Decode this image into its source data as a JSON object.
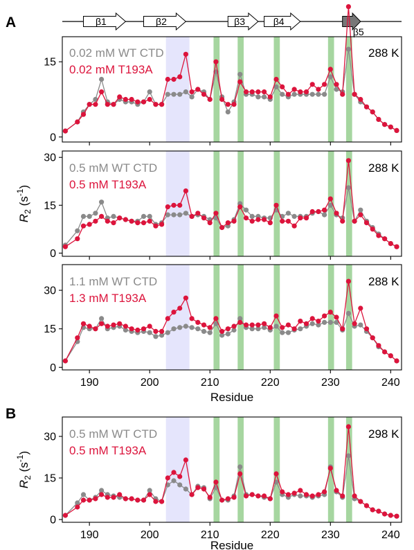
{
  "panel_labels": [
    "A",
    "B"
  ],
  "secondary_structure": {
    "strands": [
      {
        "label": "β1",
        "start": 189,
        "end": 196,
        "color": "#ffffff"
      },
      {
        "label": "β2",
        "start": 199,
        "end": 206,
        "color": "#ffffff"
      },
      {
        "label": "β3",
        "start": 213,
        "end": 218,
        "color": "#ffffff"
      },
      {
        "label": "β4",
        "start": 219,
        "end": 225,
        "color": "#ffffff"
      },
      {
        "label": "β5",
        "start": 232,
        "end": 235,
        "color": "#777777"
      }
    ]
  },
  "colors": {
    "wt": "#8a8a8a",
    "t193a": "#dc143c",
    "shade_blue": "#dcdcfb",
    "shade_green": "#a6d6a0"
  },
  "chart_data": [
    {
      "type": "line",
      "panel": "A",
      "temperature": "288 K",
      "ylabel": "",
      "xlabel": "",
      "xlim": [
        185.5,
        241.8
      ],
      "ylim": [
        -1,
        20
      ],
      "yticks": [
        0,
        15
      ],
      "xticks": [
        190,
        200,
        210,
        220,
        230,
        240
      ],
      "show_xtick_labels": false,
      "highlight_blue": [
        202.7,
        206.6
      ],
      "highlight_green": [
        210.6,
        214.6,
        220.6,
        229.6,
        232.6
      ],
      "series": [
        {
          "name": "0.02 mM WT CTD",
          "color": "#8a8a8a",
          "x": [
            186,
            188,
            189,
            190,
            191,
            192,
            193,
            194,
            195,
            196,
            197,
            198,
            199,
            200,
            201,
            202,
            203,
            204,
            205,
            206,
            207,
            208,
            209,
            210,
            211,
            212,
            213,
            214,
            215,
            216,
            217,
            218,
            219,
            220,
            221,
            222,
            223,
            224,
            225,
            226,
            227,
            228,
            229,
            230,
            231,
            232,
            233,
            234,
            235,
            236,
            237,
            238,
            239,
            240,
            241
          ],
          "y": [
            1.2,
            3.0,
            5.0,
            6.5,
            7.5,
            11.5,
            7.0,
            6.5,
            7.5,
            7.0,
            7.0,
            6.5,
            7.0,
            9.0,
            6.5,
            6.5,
            8.5,
            8.5,
            8.5,
            9.0,
            8.0,
            9.5,
            9.0,
            7.5,
            13.0,
            8.0,
            5.0,
            7.0,
            12.5,
            8.5,
            8.5,
            8.0,
            8.0,
            7.5,
            10.0,
            8.5,
            8.0,
            8.5,
            8.5,
            8.5,
            8.5,
            8.5,
            8.5,
            12.0,
            9.5,
            9.0,
            17.5,
            8.5,
            7.0,
            6.0,
            5.0,
            3.5,
            2.5,
            2.0,
            1.3
          ]
        },
        {
          "name": "0.02 mM T193A",
          "color": "#dc143c",
          "x": [
            186,
            188,
            189,
            190,
            191,
            192,
            193,
            194,
            195,
            196,
            197,
            198,
            199,
            200,
            201,
            202,
            203,
            204,
            205,
            206,
            207,
            208,
            209,
            210,
            211,
            212,
            213,
            214,
            215,
            216,
            217,
            218,
            219,
            220,
            221,
            222,
            223,
            224,
            225,
            226,
            227,
            228,
            229,
            230,
            231,
            232,
            233,
            234,
            235,
            236,
            237,
            238,
            239,
            240,
            241
          ],
          "y": [
            1.2,
            3.0,
            4.5,
            6.5,
            6.5,
            9.0,
            6.5,
            6.5,
            8.0,
            7.5,
            7.5,
            7.0,
            7.0,
            7.5,
            6.5,
            6.5,
            11.5,
            11.5,
            12.0,
            16.5,
            9.0,
            9.5,
            8.5,
            7.5,
            15.0,
            7.5,
            6.5,
            6.5,
            11.0,
            9.0,
            9.0,
            9.0,
            9.0,
            8.0,
            11.5,
            10.0,
            8.5,
            9.5,
            9.0,
            9.0,
            10.5,
            9.5,
            10.5,
            13.5,
            10.5,
            8.5,
            26.0,
            8.5,
            7.5,
            6.0,
            5.0,
            3.5,
            2.5,
            2.0,
            1.3
          ]
        }
      ]
    },
    {
      "type": "line",
      "panel": "A",
      "temperature": "288 K",
      "ylabel": "R2 (s-1)",
      "xlabel": "",
      "xlim": [
        185.5,
        241.8
      ],
      "ylim": [
        -1,
        32
      ],
      "yticks": [
        0,
        15,
        30
      ],
      "xticks": [
        190,
        200,
        210,
        220,
        230,
        240
      ],
      "show_xtick_labels": false,
      "highlight_blue": [
        202.7,
        206.6
      ],
      "highlight_green": [
        210.6,
        214.6,
        220.6,
        229.6,
        232.6
      ],
      "series": [
        {
          "name": "0.5 mM WT CTD",
          "color": "#8a8a8a",
          "x": [
            186,
            188,
            189,
            190,
            191,
            192,
            193,
            194,
            195,
            196,
            197,
            198,
            199,
            200,
            201,
            202,
            203,
            204,
            205,
            206,
            207,
            208,
            209,
            210,
            211,
            212,
            213,
            214,
            215,
            216,
            217,
            218,
            219,
            220,
            221,
            222,
            223,
            224,
            225,
            226,
            227,
            228,
            229,
            230,
            231,
            232,
            233,
            234,
            235,
            236,
            237,
            238,
            239,
            240,
            241
          ],
          "y": [
            2.5,
            7.0,
            11.5,
            11.5,
            12.5,
            16.0,
            11.0,
            11.5,
            11.0,
            10.5,
            10.0,
            10.0,
            11.5,
            11.5,
            9.0,
            9.5,
            12.0,
            12.0,
            12.0,
            12.5,
            11.5,
            12.0,
            11.5,
            10.5,
            11.0,
            8.0,
            8.5,
            10.5,
            15.5,
            13.5,
            11.5,
            11.5,
            11.0,
            11.0,
            13.5,
            11.5,
            12.5,
            11.5,
            11.5,
            11.5,
            12.5,
            13.0,
            12.0,
            15.0,
            12.0,
            11.0,
            20.5,
            10.0,
            13.5,
            10.0,
            8.0,
            6.0,
            4.5,
            3.0,
            2.0
          ]
        },
        {
          "name": "0.5 mM T193A",
          "color": "#dc143c",
          "x": [
            186,
            188,
            189,
            190,
            191,
            192,
            193,
            194,
            195,
            196,
            197,
            198,
            199,
            200,
            201,
            202,
            203,
            204,
            205,
            206,
            207,
            208,
            209,
            210,
            211,
            212,
            213,
            214,
            215,
            216,
            217,
            218,
            219,
            220,
            221,
            222,
            223,
            224,
            225,
            226,
            227,
            228,
            229,
            230,
            231,
            232,
            233,
            234,
            235,
            236,
            237,
            238,
            239,
            240,
            241
          ],
          "y": [
            2.0,
            4.5,
            8.5,
            9.0,
            10.0,
            11.5,
            10.0,
            9.5,
            11.0,
            10.5,
            10.0,
            9.5,
            9.5,
            10.0,
            8.5,
            9.0,
            14.5,
            15.0,
            15.0,
            19.5,
            11.5,
            12.5,
            11.0,
            9.5,
            12.5,
            8.0,
            9.5,
            10.0,
            14.5,
            11.0,
            10.0,
            10.5,
            10.5,
            9.5,
            15.0,
            10.0,
            10.0,
            8.5,
            11.0,
            11.0,
            13.0,
            13.0,
            13.5,
            17.0,
            12.5,
            10.0,
            29.0,
            10.0,
            12.0,
            9.5,
            7.5,
            5.5,
            4.5,
            3.0,
            2.0
          ]
        }
      ]
    },
    {
      "type": "line",
      "panel": "A",
      "temperature": "288 K",
      "ylabel": "",
      "xlabel": "Residue",
      "xlim": [
        185.5,
        241.8
      ],
      "ylim": [
        -1,
        40
      ],
      "yticks": [
        0,
        15,
        30
      ],
      "xticks": [
        190,
        200,
        210,
        220,
        230,
        240
      ],
      "show_xtick_labels": true,
      "highlight_blue": [
        202.7,
        206.6
      ],
      "highlight_green": [
        210.6,
        214.6,
        220.6,
        229.6,
        232.6
      ],
      "series": [
        {
          "name": "1.1 mM WT CTD",
          "color": "#8a8a8a",
          "x": [
            186,
            188,
            189,
            190,
            191,
            192,
            193,
            194,
            195,
            196,
            197,
            198,
            199,
            200,
            201,
            202,
            203,
            204,
            205,
            206,
            207,
            208,
            209,
            210,
            211,
            212,
            213,
            214,
            215,
            216,
            217,
            218,
            219,
            220,
            221,
            222,
            223,
            224,
            225,
            226,
            227,
            228,
            229,
            230,
            231,
            232,
            233,
            234,
            235,
            236,
            237,
            238,
            239,
            240,
            241
          ],
          "y": [
            2.5,
            10.0,
            15.5,
            15.0,
            15.0,
            19.0,
            15.0,
            15.5,
            16.0,
            14.5,
            14.0,
            13.5,
            14.0,
            13.5,
            12.0,
            12.5,
            13.5,
            15.0,
            15.5,
            16.0,
            15.5,
            15.0,
            14.0,
            13.5,
            17.0,
            12.5,
            13.0,
            14.5,
            19.0,
            15.5,
            15.0,
            15.0,
            15.5,
            14.5,
            16.0,
            13.5,
            13.5,
            14.5,
            15.0,
            16.0,
            17.0,
            16.5,
            17.5,
            17.5,
            17.5,
            14.5,
            21.0,
            16.0,
            16.5,
            14.0,
            11.5,
            8.0,
            6.0,
            4.5,
            2.5
          ]
        },
        {
          "name": "1.3 mM T193A",
          "color": "#dc143c",
          "x": [
            186,
            188,
            189,
            190,
            191,
            192,
            193,
            194,
            195,
            196,
            197,
            198,
            199,
            200,
            201,
            202,
            203,
            204,
            205,
            206,
            207,
            208,
            209,
            210,
            211,
            212,
            213,
            214,
            215,
            216,
            217,
            218,
            219,
            220,
            221,
            222,
            223,
            224,
            225,
            226,
            227,
            228,
            229,
            230,
            231,
            232,
            233,
            234,
            235,
            236,
            237,
            238,
            239,
            240,
            241
          ],
          "y": [
            2.5,
            11.5,
            17.0,
            16.0,
            15.0,
            17.0,
            16.0,
            16.5,
            17.0,
            16.0,
            15.0,
            14.5,
            15.0,
            16.0,
            14.0,
            14.0,
            19.0,
            21.5,
            23.0,
            27.0,
            19.0,
            17.5,
            16.5,
            15.5,
            19.0,
            14.0,
            15.0,
            16.0,
            17.5,
            16.5,
            16.5,
            16.5,
            17.0,
            15.5,
            20.0,
            15.5,
            16.5,
            15.0,
            18.0,
            17.0,
            19.0,
            18.0,
            20.0,
            21.5,
            19.5,
            15.0,
            33.5,
            17.0,
            23.0,
            15.0,
            11.5,
            8.5,
            6.0,
            4.5,
            2.5
          ]
        }
      ]
    },
    {
      "type": "line",
      "panel": "B",
      "temperature": "298 K",
      "ylabel": "R2 (s-1)",
      "xlabel": "Residue",
      "xlim": [
        185.5,
        241.8
      ],
      "ylim": [
        -1,
        37
      ],
      "yticks": [
        0,
        15,
        30
      ],
      "xticks": [
        190,
        200,
        210,
        220,
        230,
        240
      ],
      "show_xtick_labels": true,
      "highlight_blue": [
        202.7,
        206.6
      ],
      "highlight_green": [
        210.6,
        214.6,
        220.6,
        229.6,
        232.6
      ],
      "series": [
        {
          "name": "0.5 mM WT CTD",
          "color": "#8a8a8a",
          "x": [
            186,
            188,
            189,
            190,
            191,
            192,
            193,
            194,
            195,
            196,
            197,
            198,
            199,
            200,
            201,
            202,
            203,
            204,
            205,
            206,
            207,
            208,
            209,
            210,
            211,
            212,
            213,
            214,
            215,
            216,
            217,
            218,
            219,
            220,
            221,
            222,
            223,
            224,
            225,
            226,
            227,
            228,
            229,
            230,
            231,
            232,
            233,
            234,
            235,
            236,
            237,
            238,
            239,
            240,
            241
          ],
          "y": [
            1.5,
            6.0,
            9.0,
            7.0,
            8.0,
            10.5,
            9.0,
            8.5,
            8.0,
            7.5,
            7.5,
            7.0,
            7.0,
            10.5,
            7.5,
            6.5,
            12.5,
            14.0,
            12.5,
            11.0,
            9.0,
            12.0,
            11.5,
            7.5,
            11.5,
            7.0,
            7.0,
            8.5,
            19.0,
            9.0,
            9.0,
            8.5,
            8.0,
            7.5,
            13.5,
            9.0,
            8.0,
            9.0,
            8.5,
            8.5,
            8.0,
            8.5,
            9.0,
            19.0,
            10.0,
            8.0,
            23.0,
            7.5,
            6.5,
            5.0,
            3.5,
            3.0,
            2.0,
            1.5,
            1.2
          ]
        },
        {
          "name": "0.5 mM T193A",
          "color": "#dc143c",
          "x": [
            186,
            188,
            189,
            190,
            191,
            192,
            193,
            194,
            195,
            196,
            197,
            198,
            199,
            200,
            201,
            202,
            203,
            204,
            205,
            206,
            207,
            208,
            209,
            210,
            211,
            212,
            213,
            214,
            215,
            216,
            217,
            218,
            219,
            220,
            221,
            222,
            223,
            224,
            225,
            226,
            227,
            228,
            229,
            230,
            231,
            232,
            233,
            234,
            235,
            236,
            237,
            238,
            239,
            240,
            241
          ],
          "y": [
            1.5,
            4.5,
            7.0,
            7.0,
            7.5,
            9.0,
            8.0,
            8.0,
            9.0,
            7.5,
            7.5,
            7.0,
            7.0,
            9.0,
            6.5,
            6.5,
            15.0,
            17.0,
            15.5,
            21.5,
            9.0,
            11.5,
            11.0,
            8.0,
            13.5,
            7.0,
            7.5,
            8.0,
            16.5,
            8.5,
            9.0,
            8.5,
            8.5,
            7.5,
            16.5,
            10.0,
            9.0,
            9.5,
            10.5,
            9.0,
            8.5,
            9.0,
            10.0,
            18.5,
            10.5,
            8.5,
            33.5,
            8.5,
            6.5,
            5.0,
            3.5,
            3.0,
            2.0,
            1.5,
            1.2
          ]
        }
      ]
    }
  ]
}
